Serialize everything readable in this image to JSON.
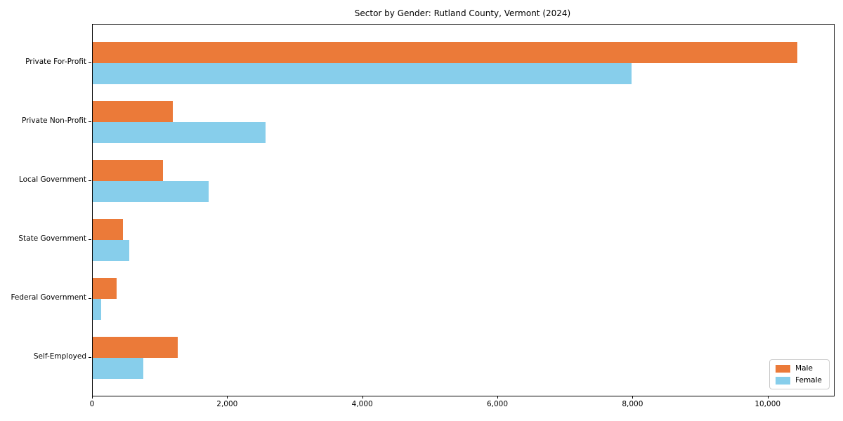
{
  "chart_data": {
    "type": "bar",
    "orientation": "horizontal",
    "title": "Sector by Gender: Rutland County, Vermont (2024)",
    "xlabel": "",
    "ylabel": "",
    "categories": [
      "Private For-Profit",
      "Private Non-Profit",
      "Local Government",
      "State Government",
      "Federal Government",
      "Self-Employed"
    ],
    "series": [
      {
        "name": "Male",
        "color": "#EB7A39",
        "values": [
          10430,
          1180,
          1040,
          445,
          355,
          1260
        ]
      },
      {
        "name": "Female",
        "color": "#87CEEB",
        "values": [
          7970,
          2555,
          1715,
          545,
          120,
          750
        ]
      }
    ],
    "xlim": [
      0,
      10970
    ],
    "xticks": [
      0,
      2000,
      4000,
      6000,
      8000,
      10000
    ],
    "xtick_labels": [
      "0",
      "2,000",
      "4,000",
      "6,000",
      "8,000",
      "10,000"
    ],
    "grid": false,
    "legend_position": "lower right",
    "axes_color": "#000000",
    "background_color": "#ffffff"
  }
}
